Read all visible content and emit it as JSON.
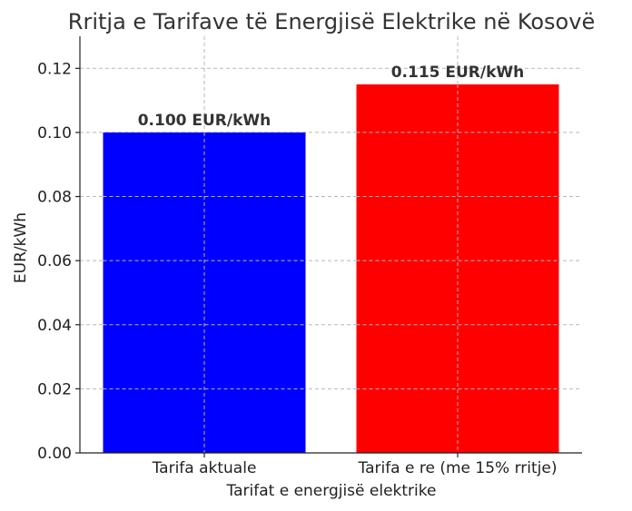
{
  "chart_data": {
    "type": "bar",
    "title": "Rritja e Tarifave të Energjisë Elektrike në Kosovë",
    "xlabel": "Tarifat e energjisë elektrike",
    "ylabel": "EUR/kWh",
    "categories": [
      "Tarifa aktuale",
      "Tarifa e re (me 15% rritje)"
    ],
    "values": [
      0.1,
      0.115
    ],
    "value_labels": [
      "0.100 EUR/kWh",
      "0.115 EUR/kWh"
    ],
    "colors": [
      "#0000ff",
      "#ff0000"
    ],
    "ylim": [
      0,
      0.13
    ],
    "yticks": [
      0,
      0.02,
      0.04,
      0.06,
      0.08,
      0.1,
      0.12
    ],
    "ytick_labels": [
      "0.00",
      "0.02",
      "0.04",
      "0.06",
      "0.08",
      "0.10",
      "0.12"
    ],
    "grid": true,
    "legend": false
  }
}
